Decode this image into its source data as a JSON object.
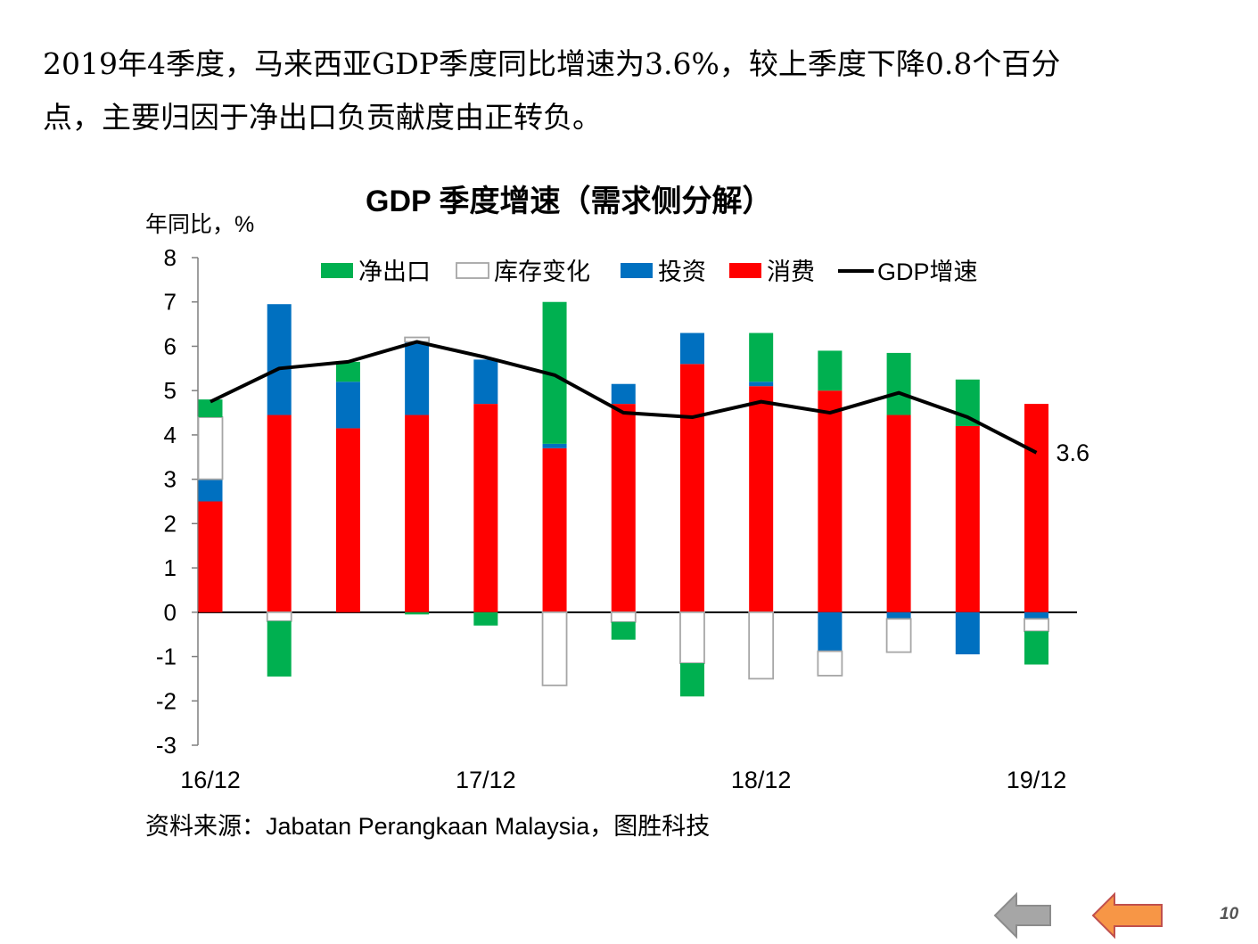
{
  "slide": {
    "headline_line1": "2019年4季度，马来西亚GDP季度同比增速为3.6%，较上季度下降0.8个百分",
    "headline_line2": "点，主要归因于净出口负贡献度由正转负。",
    "source": "资料来源：Jabatan Perangkaan Malaysia，图胜科技",
    "page_number": "10"
  },
  "nav": {
    "back_icon": "gray-left-arrow-icon",
    "prev_icon": "orange-left-arrow-icon"
  },
  "chart_data": {
    "type": "bar",
    "title": "GDP 季度增速（需求侧分解）",
    "ylabel": "年同比，%",
    "ylim": [
      -3,
      8
    ],
    "yticks": [
      "8",
      "7",
      "6",
      "5",
      "4",
      "3",
      "2",
      "1",
      "0",
      "-1",
      "-2",
      "-3"
    ],
    "xtick_labels": [
      "16/12",
      "17/12",
      "18/12",
      "19/12"
    ],
    "categories": [
      "16/12",
      "17/03",
      "17/06",
      "17/09",
      "17/12",
      "18/03",
      "18/06",
      "18/09",
      "18/12",
      "19/03",
      "19/06",
      "19/09",
      "19/12"
    ],
    "legend_position": "top",
    "series": [
      {
        "name": "净出口",
        "kind": "bar",
        "color": "#00b050",
        "values": [
          0.4,
          -1.25,
          0.45,
          -0.05,
          -0.3,
          3.2,
          -0.4,
          -0.75,
          1.1,
          0.9,
          1.4,
          1.05,
          -0.75
        ]
      },
      {
        "name": "库存变化",
        "kind": "bar",
        "color": "#ffffff",
        "stroke": "#a6a6a6",
        "values": [
          1.4,
          -0.2,
          0.0,
          0.1,
          0.0,
          -1.65,
          -0.22,
          -1.15,
          -1.5,
          -0.55,
          -0.75,
          0.0,
          -0.28
        ]
      },
      {
        "name": "投资",
        "kind": "bar",
        "color": "#0070c0",
        "values": [
          0.5,
          2.5,
          1.05,
          1.65,
          1.0,
          0.1,
          0.45,
          0.7,
          0.1,
          -0.88,
          -0.15,
          -0.95,
          -0.15
        ]
      },
      {
        "name": "消费",
        "kind": "bar",
        "color": "#ff0000",
        "values": [
          2.5,
          4.45,
          4.15,
          4.45,
          4.7,
          3.7,
          4.7,
          5.6,
          5.1,
          5.0,
          4.45,
          4.2,
          4.7
        ]
      },
      {
        "name": "GDP增速",
        "kind": "line",
        "color": "#000000",
        "values": [
          4.75,
          5.5,
          5.65,
          6.1,
          5.75,
          5.35,
          4.5,
          4.4,
          4.75,
          4.5,
          4.95,
          4.4,
          3.6
        ]
      }
    ],
    "annotations": [
      {
        "text": "3.6",
        "category": "19/12",
        "series": "GDP增速"
      }
    ]
  }
}
